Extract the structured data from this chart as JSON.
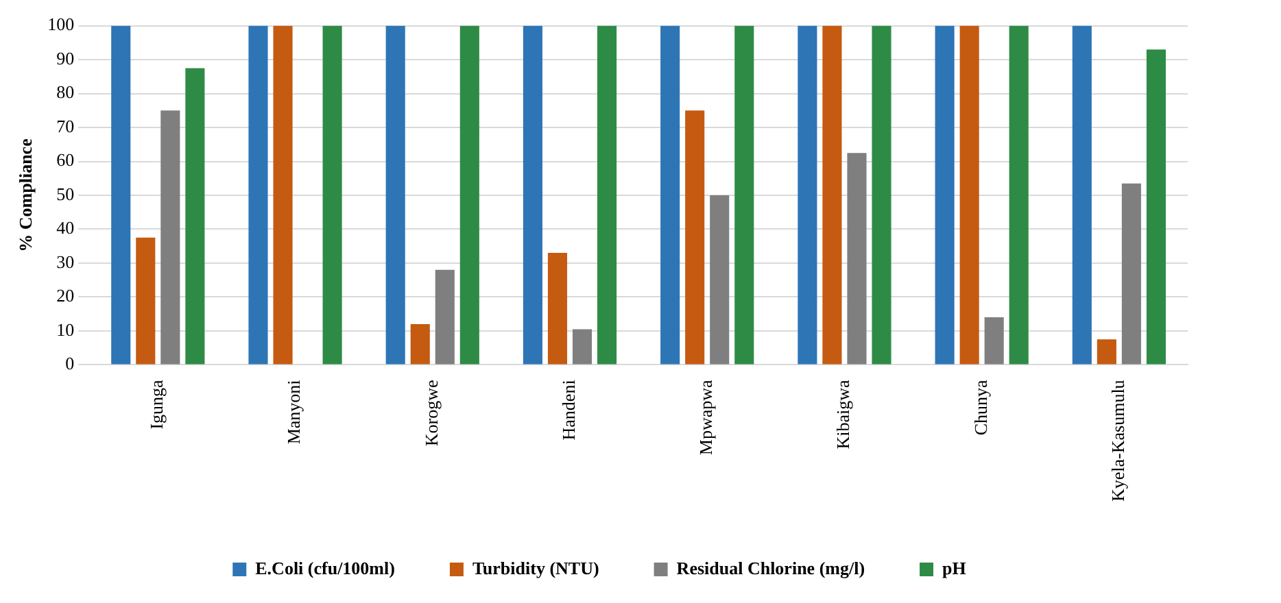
{
  "chart_data": {
    "type": "bar",
    "ylabel": "% Compliance",
    "categories": [
      "Igunga",
      "Manyoni",
      "Korogwe",
      "Handeni",
      "Mpwapwa",
      "Kibaigwa",
      "Chunya",
      "Kyela-Kasumulu"
    ],
    "series": [
      {
        "name": "E.Coli (cfu/100ml)",
        "color": "#2e75b6",
        "values": [
          100,
          100,
          100,
          100,
          100,
          100,
          100,
          100
        ]
      },
      {
        "name": "Turbidity (NTU)",
        "color": "#c55a11",
        "values": [
          37.5,
          100,
          12,
          33,
          75,
          100,
          100,
          7.5
        ]
      },
      {
        "name": "Residual Chlorine (mg/l)",
        "color": "#7f7f7f",
        "values": [
          75,
          0,
          28,
          10.5,
          50,
          62.5,
          14,
          53.5
        ]
      },
      {
        "name": "pH",
        "color": "#2e8b46",
        "values": [
          87.5,
          100,
          100,
          100,
          100,
          100,
          100,
          93
        ]
      }
    ],
    "ylim": [
      0,
      100
    ],
    "yticks": [
      0,
      10,
      20,
      30,
      40,
      50,
      60,
      70,
      80,
      90,
      100
    ],
    "grid": "y",
    "legend": "bottom"
  }
}
